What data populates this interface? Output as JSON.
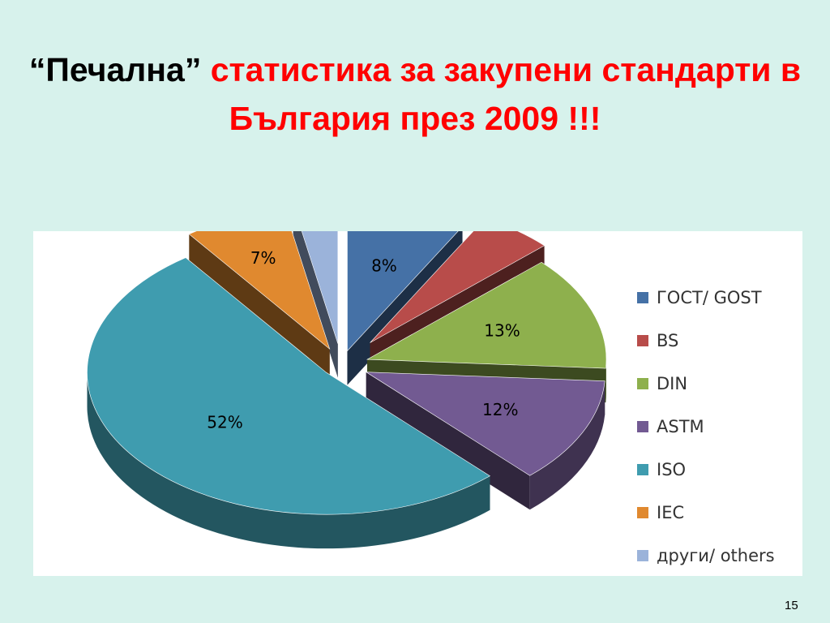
{
  "slide": {
    "title_quote": "“Печална”",
    "title_rest": " статистика за закупени стандарти в България през 2009 !!!",
    "page_number": "15"
  },
  "chart_data": {
    "type": "pie",
    "style": "3d-exploded",
    "legend_position": "right",
    "slices": [
      {
        "label": "ГОСТ/ GOST",
        "value": 8,
        "display": "8%",
        "color": "#4571a6"
      },
      {
        "label": "BS",
        "value": 5,
        "display": "5%",
        "color": "#b84c4a"
      },
      {
        "label": "DIN",
        "value": 13,
        "display": "13%",
        "color": "#8eb04d"
      },
      {
        "label": "ASTM",
        "value": 12,
        "display": "12%",
        "color": "#725a92"
      },
      {
        "label": "ISO",
        "value": 52,
        "display": "52%",
        "color": "#3f9caf"
      },
      {
        "label": "IEC",
        "value": 7,
        "display": "7%",
        "color": "#e0892f"
      },
      {
        "label": "други/ others",
        "value": 3,
        "display": "3%",
        "color": "#9bb3da"
      }
    ]
  }
}
